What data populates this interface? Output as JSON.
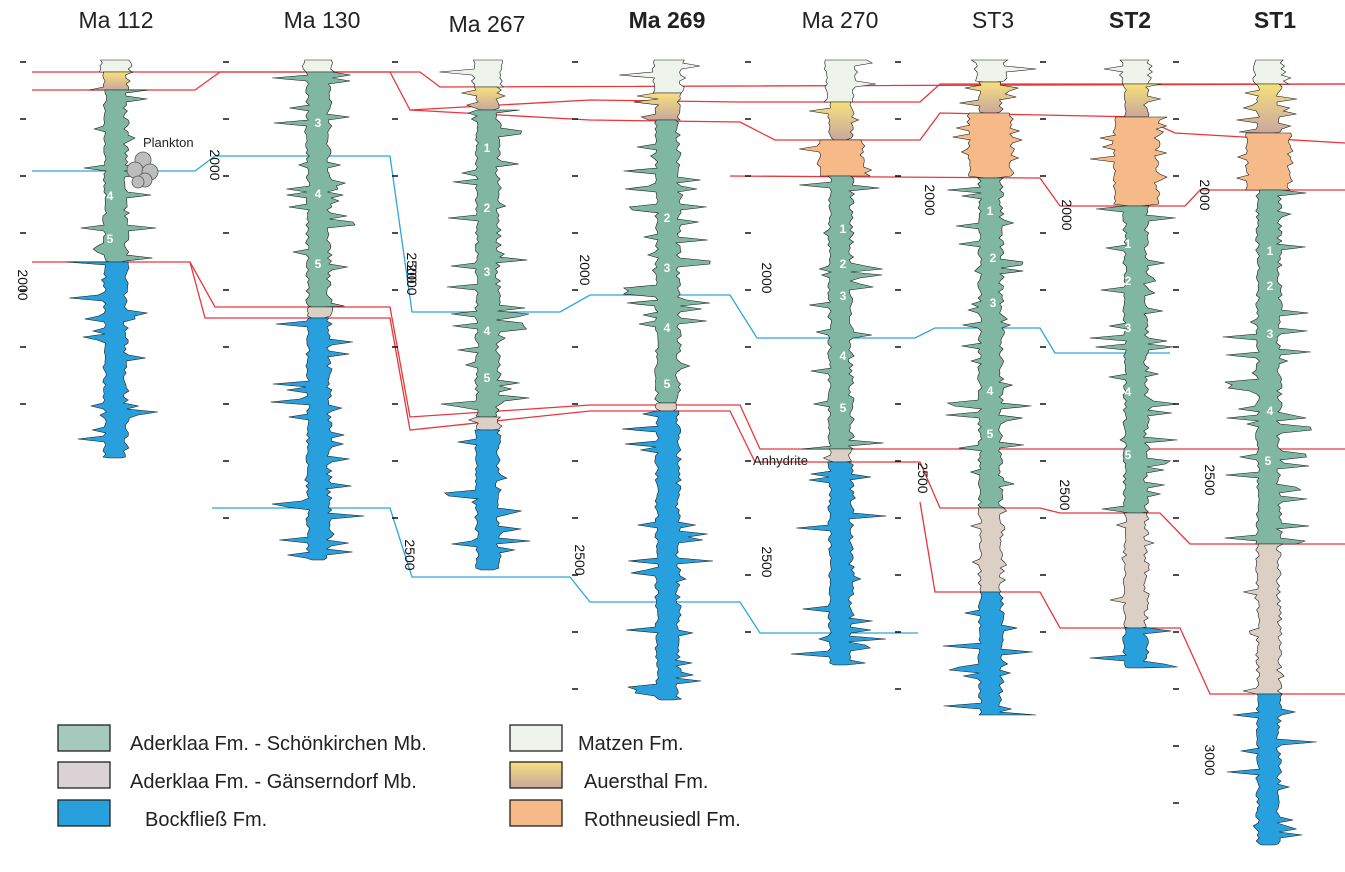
{
  "wells": [
    {
      "id": "ma112",
      "title": "Ma 112",
      "bold": false
    },
    {
      "id": "ma130",
      "title": "Ma 130",
      "bold": false
    },
    {
      "id": "ma267",
      "title": "Ma 267",
      "bold": false
    },
    {
      "id": "ma269",
      "title": "Ma 269",
      "bold": true
    },
    {
      "id": "ma270",
      "title": "Ma 270",
      "bold": false
    },
    {
      "id": "st3",
      "title": "ST3",
      "bold": false
    },
    {
      "id": "st2",
      "title": "ST2",
      "bold": true
    },
    {
      "id": "st1",
      "title": "ST1",
      "bold": true
    }
  ],
  "depth_labels": {
    "ma112": [
      "2000"
    ],
    "ma130": [
      "2000",
      "2500"
    ],
    "ma267": [
      "2000",
      "2500"
    ],
    "ma269": [
      "2000",
      "2500"
    ],
    "ma270": [
      "2000",
      "2500"
    ],
    "st3": [
      "2000",
      "2500"
    ],
    "st2": [
      "2000",
      "2500"
    ],
    "st1": [
      "2000",
      "2500",
      "3000"
    ]
  },
  "subzone_numbers": [
    "1",
    "2",
    "3",
    "4",
    "5"
  ],
  "annotations": {
    "plankton": "Plankton",
    "anhydrite": "Anhydrite"
  },
  "legend": [
    {
      "id": "schonkirchen",
      "label": "Aderklaa Fm. - Schönkirchen Mb.",
      "color": "#a6c9bd"
    },
    {
      "id": "ganserndorf",
      "label": "Aderklaa Fm. - Gänserndorf Mb.",
      "color": "#dbd2d6"
    },
    {
      "id": "bockfliess",
      "label": "Bockfließ Fm.",
      "color": "#27a0dd"
    },
    {
      "id": "matzen",
      "label": "Matzen Fm.",
      "color": "#eef4ec"
    },
    {
      "id": "auersthal",
      "label": "Auersthal Fm.",
      "color_top": "#f6e07c",
      "color_bottom": "#c9a79e"
    },
    {
      "id": "rothneusiedl",
      "label": "Rothneusiedl Fm.",
      "color": "#f6b988"
    }
  ],
  "colors": {
    "correlation_red": "#e8363c",
    "correlation_blue": "#2aa8d8",
    "schonkirchen_dark": "#3f9273",
    "schonkirchen_light": "#cfe6df"
  }
}
